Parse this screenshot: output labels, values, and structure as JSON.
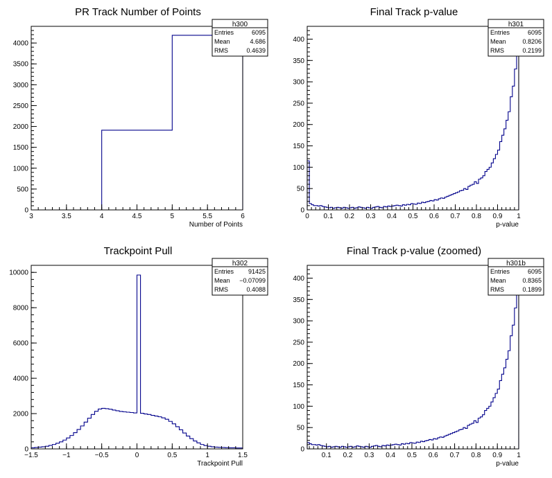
{
  "chart_data": [
    {
      "type": "bar",
      "title": "PR Track Number of Points",
      "xlabel": "Number of Points",
      "ylabel": "",
      "xlim": [
        3,
        6
      ],
      "ylim": [
        0,
        4400
      ],
      "xticks": [
        3,
        3.5,
        4,
        4.5,
        5,
        5.5,
        6
      ],
      "yticks": [
        0,
        500,
        1000,
        1500,
        2000,
        2500,
        3000,
        3500,
        4000
      ],
      "bins": {
        "x0": 3,
        "width": 1,
        "values": [
          0,
          1910,
          4185
        ]
      },
      "stats": {
        "name": "h300",
        "rows": [
          [
            "Entries",
            "6095"
          ],
          [
            "Mean",
            "4.686"
          ],
          [
            "RMS",
            "0.4639"
          ]
        ]
      }
    },
    {
      "type": "bar",
      "title": "Final Track p-value",
      "xlabel": "p-value",
      "ylabel": "",
      "xlim": [
        0,
        1
      ],
      "ylim": [
        0,
        430
      ],
      "xticks": [
        0,
        0.1,
        0.2,
        0.3,
        0.4,
        0.5,
        0.6,
        0.7,
        0.8,
        0.9,
        1
      ],
      "yticks": [
        0,
        50,
        100,
        150,
        200,
        250,
        300,
        350,
        400
      ],
      "bins": {
        "x0": 0,
        "width": 0.01,
        "values": [
          115,
          15,
          12,
          10,
          10,
          9,
          10,
          8,
          7,
          6,
          5,
          6,
          4,
          5,
          6,
          5,
          4,
          6,
          5,
          4,
          5,
          6,
          4,
          5,
          7,
          6,
          5,
          4,
          6,
          5,
          4,
          6,
          7,
          8,
          6,
          5,
          8,
          7,
          9,
          8,
          9,
          10,
          11,
          10,
          9,
          12,
          11,
          13,
          12,
          15,
          14,
          13,
          16,
          15,
          18,
          17,
          19,
          20,
          22,
          21,
          24,
          23,
          26,
          28,
          27,
          30,
          32,
          34,
          36,
          38,
          40,
          42,
          45,
          46,
          50,
          48,
          55,
          58,
          60,
          66,
          62,
          72,
          75,
          80,
          90,
          95,
          100,
          110,
          120,
          130,
          140,
          160,
          175,
          190,
          210,
          230,
          265,
          290,
          330,
          390
        ]
      },
      "stats": {
        "name": "h301",
        "rows": [
          [
            "Entries",
            "6095"
          ],
          [
            "Mean",
            "0.8206"
          ],
          [
            "RMS",
            "0.2199"
          ]
        ]
      }
    },
    {
      "type": "bar",
      "title": "Trackpoint Pull",
      "xlabel": "Trackpoint Pull",
      "ylabel": "",
      "xlim": [
        -1.5,
        1.5
      ],
      "ylim": [
        0,
        10400
      ],
      "xticks": [
        -1.5,
        -1,
        -0.5,
        0,
        0.5,
        1,
        1.5
      ],
      "yticks": [
        0,
        2000,
        4000,
        6000,
        8000,
        10000
      ],
      "bins": {
        "x0": -1.5,
        "width": 0.05,
        "values": [
          60,
          80,
          100,
          120,
          150,
          200,
          250,
          320,
          400,
          500,
          620,
          760,
          920,
          1100,
          1300,
          1520,
          1740,
          1950,
          2130,
          2260,
          2300,
          2280,
          2250,
          2200,
          2160,
          2120,
          2100,
          2080,
          2060,
          2040,
          9850,
          2020,
          1980,
          1950,
          1900,
          1860,
          1820,
          1760,
          1680,
          1560,
          1420,
          1260,
          1080,
          900,
          730,
          580,
          450,
          340,
          250,
          190,
          150,
          120,
          100,
          90,
          80,
          70,
          60,
          60,
          50,
          50
        ]
      },
      "stats": {
        "name": "h302",
        "rows": [
          [
            "Entries",
            "91425"
          ],
          [
            "Mean",
            "−0.07099"
          ],
          [
            "RMS",
            "0.4088"
          ]
        ]
      }
    },
    {
      "type": "bar",
      "title": "Final Track p-value (zoomed)",
      "xlabel": "p-value",
      "ylabel": "",
      "xlim": [
        0.01,
        1
      ],
      "ylim": [
        0,
        430
      ],
      "xticks": [
        0.1,
        0.2,
        0.3,
        0.4,
        0.5,
        0.6,
        0.7,
        0.8,
        0.9,
        1
      ],
      "yticks": [
        0,
        50,
        100,
        150,
        200,
        250,
        300,
        350,
        400
      ],
      "bins": {
        "x0": 0.01,
        "width": 0.01,
        "values": [
          15,
          12,
          10,
          10,
          9,
          10,
          8,
          7,
          6,
          5,
          6,
          4,
          5,
          6,
          5,
          4,
          6,
          5,
          4,
          5,
          6,
          4,
          5,
          7,
          6,
          5,
          4,
          6,
          5,
          4,
          6,
          7,
          8,
          6,
          5,
          8,
          7,
          9,
          8,
          9,
          10,
          11,
          10,
          9,
          12,
          11,
          13,
          12,
          15,
          14,
          13,
          16,
          15,
          18,
          17,
          19,
          20,
          22,
          21,
          24,
          23,
          26,
          28,
          27,
          30,
          32,
          34,
          36,
          38,
          40,
          42,
          45,
          46,
          50,
          48,
          55,
          58,
          60,
          66,
          62,
          72,
          75,
          80,
          90,
          95,
          100,
          110,
          120,
          130,
          140,
          160,
          175,
          190,
          210,
          230,
          265,
          290,
          330,
          390
        ]
      },
      "stats": {
        "name": "h301b",
        "rows": [
          [
            "Entries",
            "6095"
          ],
          [
            "Mean",
            "0.8365"
          ],
          [
            "RMS",
            "0.1899"
          ]
        ]
      }
    }
  ]
}
